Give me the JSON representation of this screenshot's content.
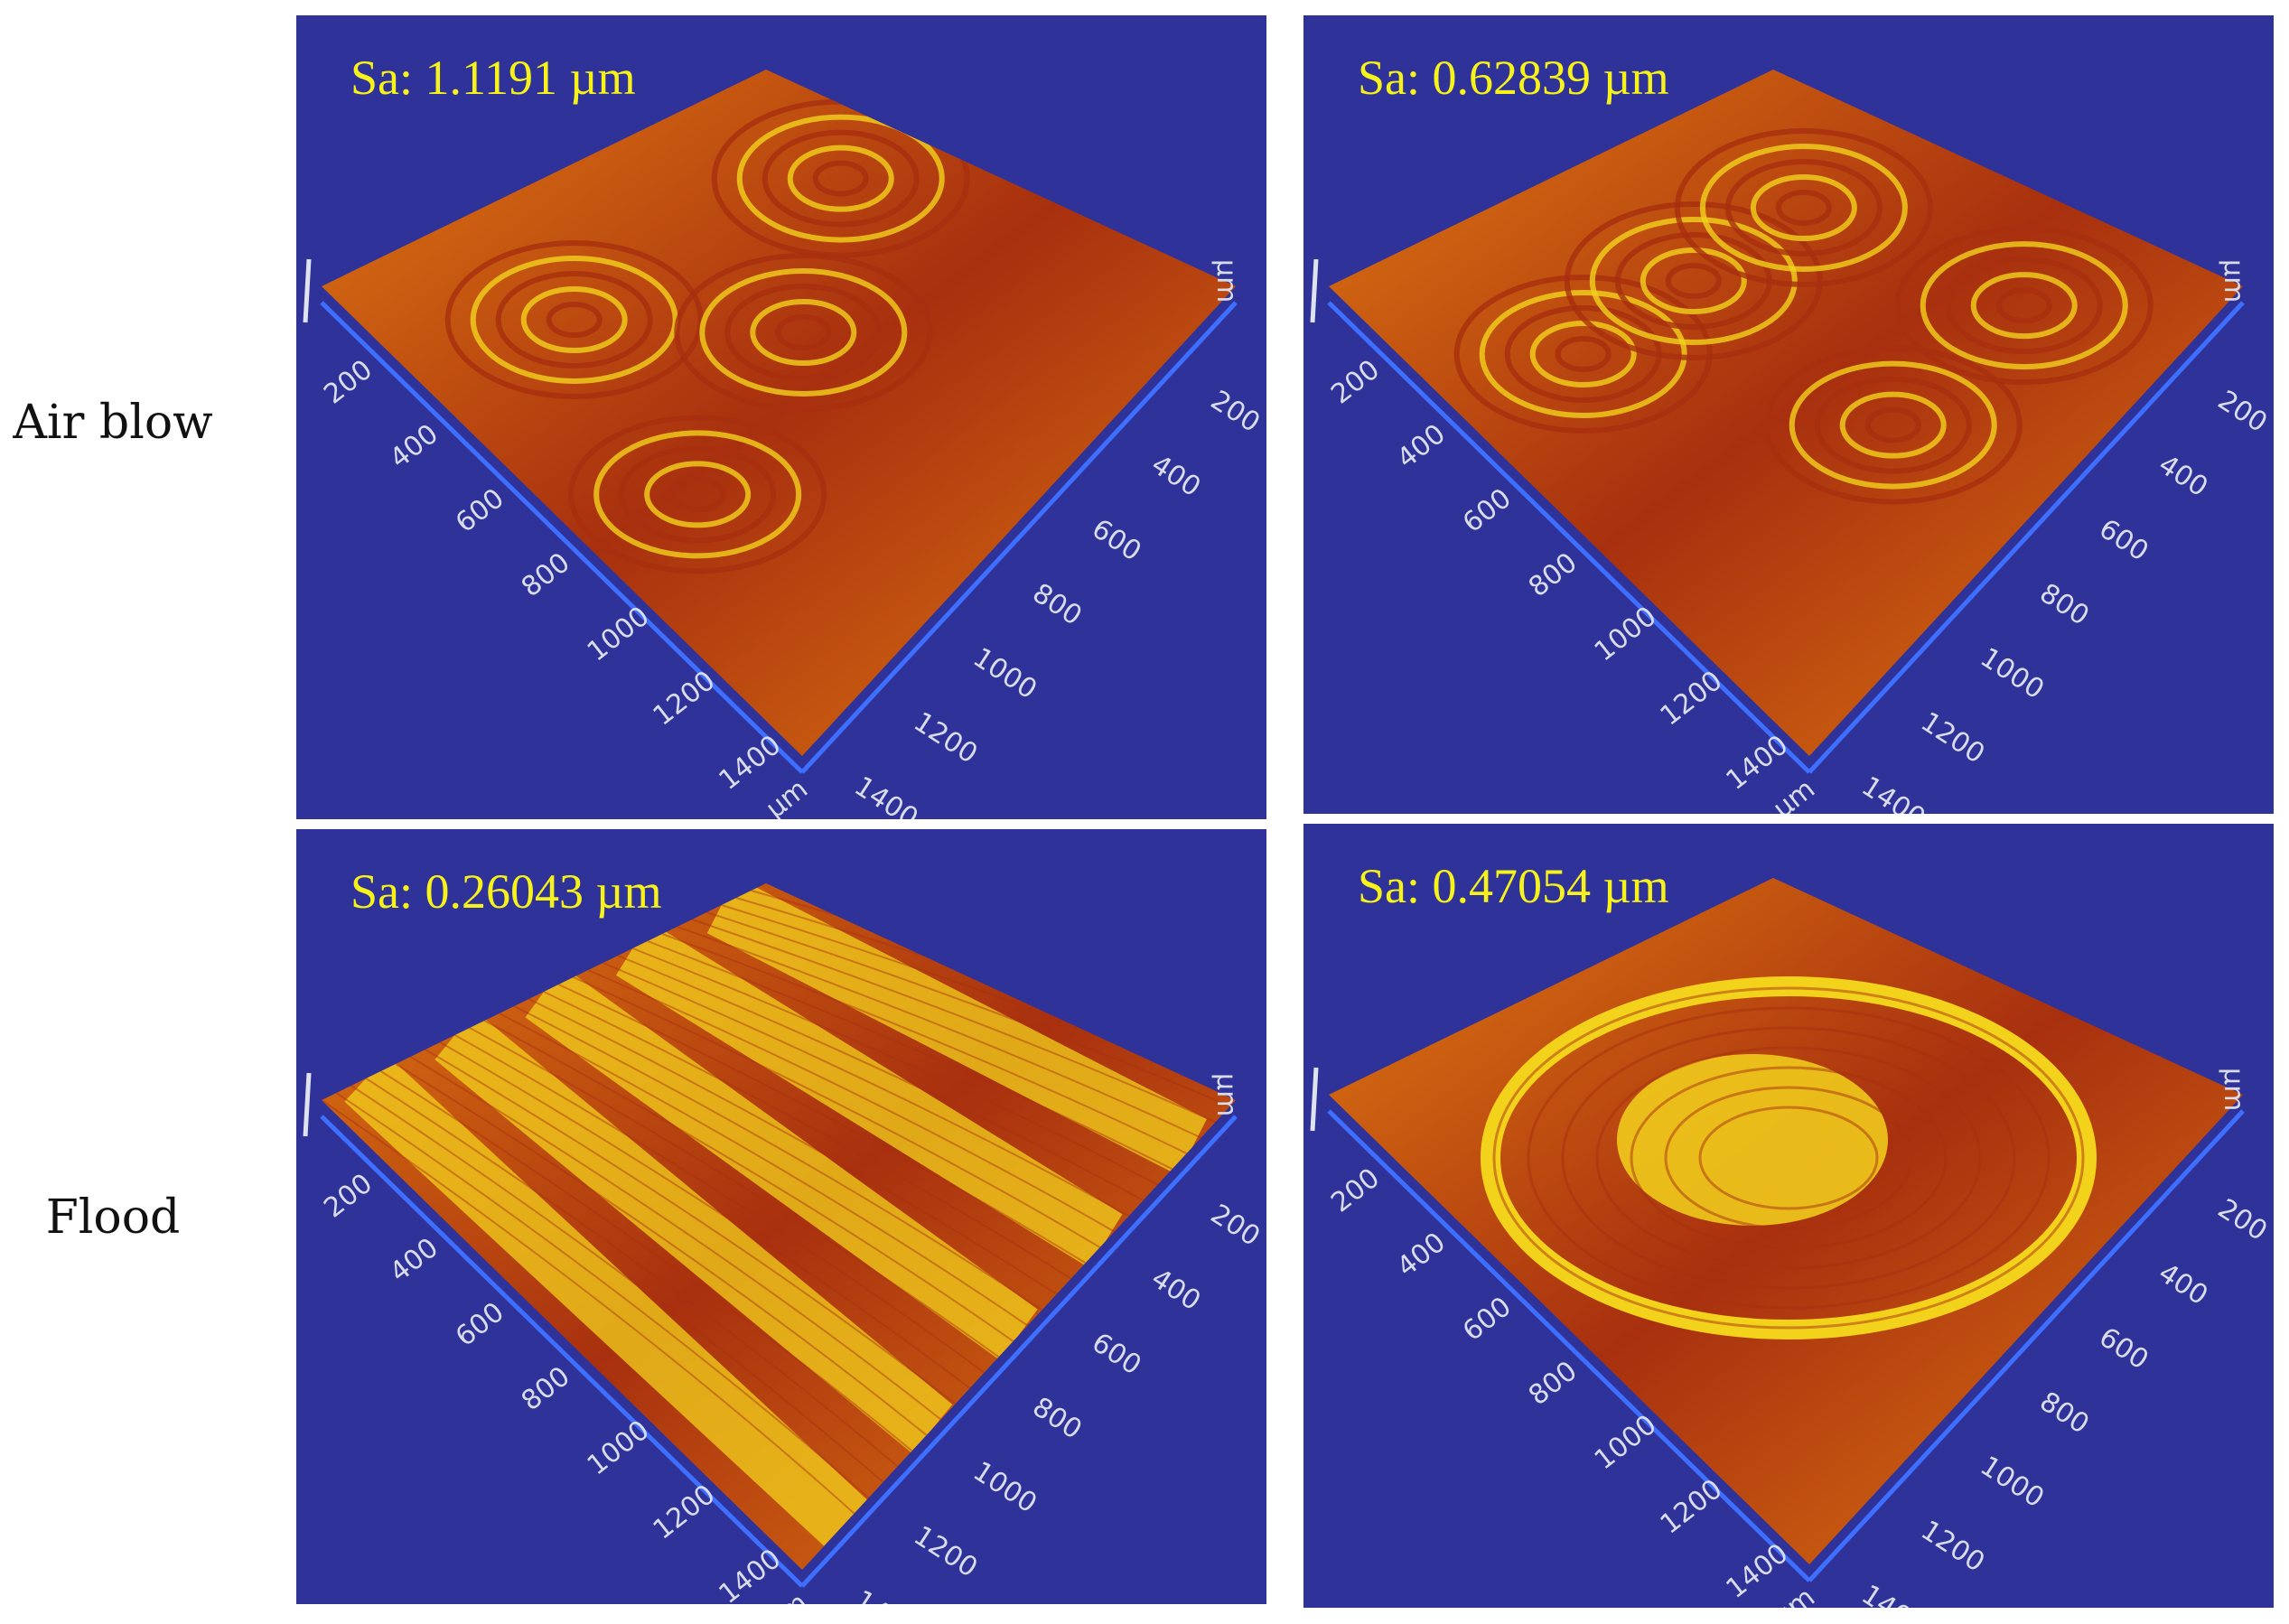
{
  "rows": [
    {
      "label": "Air blow"
    },
    {
      "label": "Flood"
    }
  ],
  "panels": [
    {
      "sa": "Sa: 1.1191 µm",
      "pattern": "rings"
    },
    {
      "sa": "Sa: 0.62839 µm",
      "pattern": "arcs"
    },
    {
      "sa": "Sa: 0.26043 µm",
      "pattern": "stripes"
    },
    {
      "sa": "Sa: 0.47054 µm",
      "pattern": "square"
    }
  ],
  "axis": {
    "ticks": [
      "200",
      "400",
      "600",
      "800",
      "1000",
      "1200",
      "1400"
    ],
    "unit": "µm"
  },
  "colors": {
    "background": "#2f3299",
    "axis": "#3f6fff",
    "label": "#f6f21a",
    "surface_dark": "#a8300f",
    "surface_mid": "#e07a12",
    "surface_light": "#f3d21c"
  }
}
